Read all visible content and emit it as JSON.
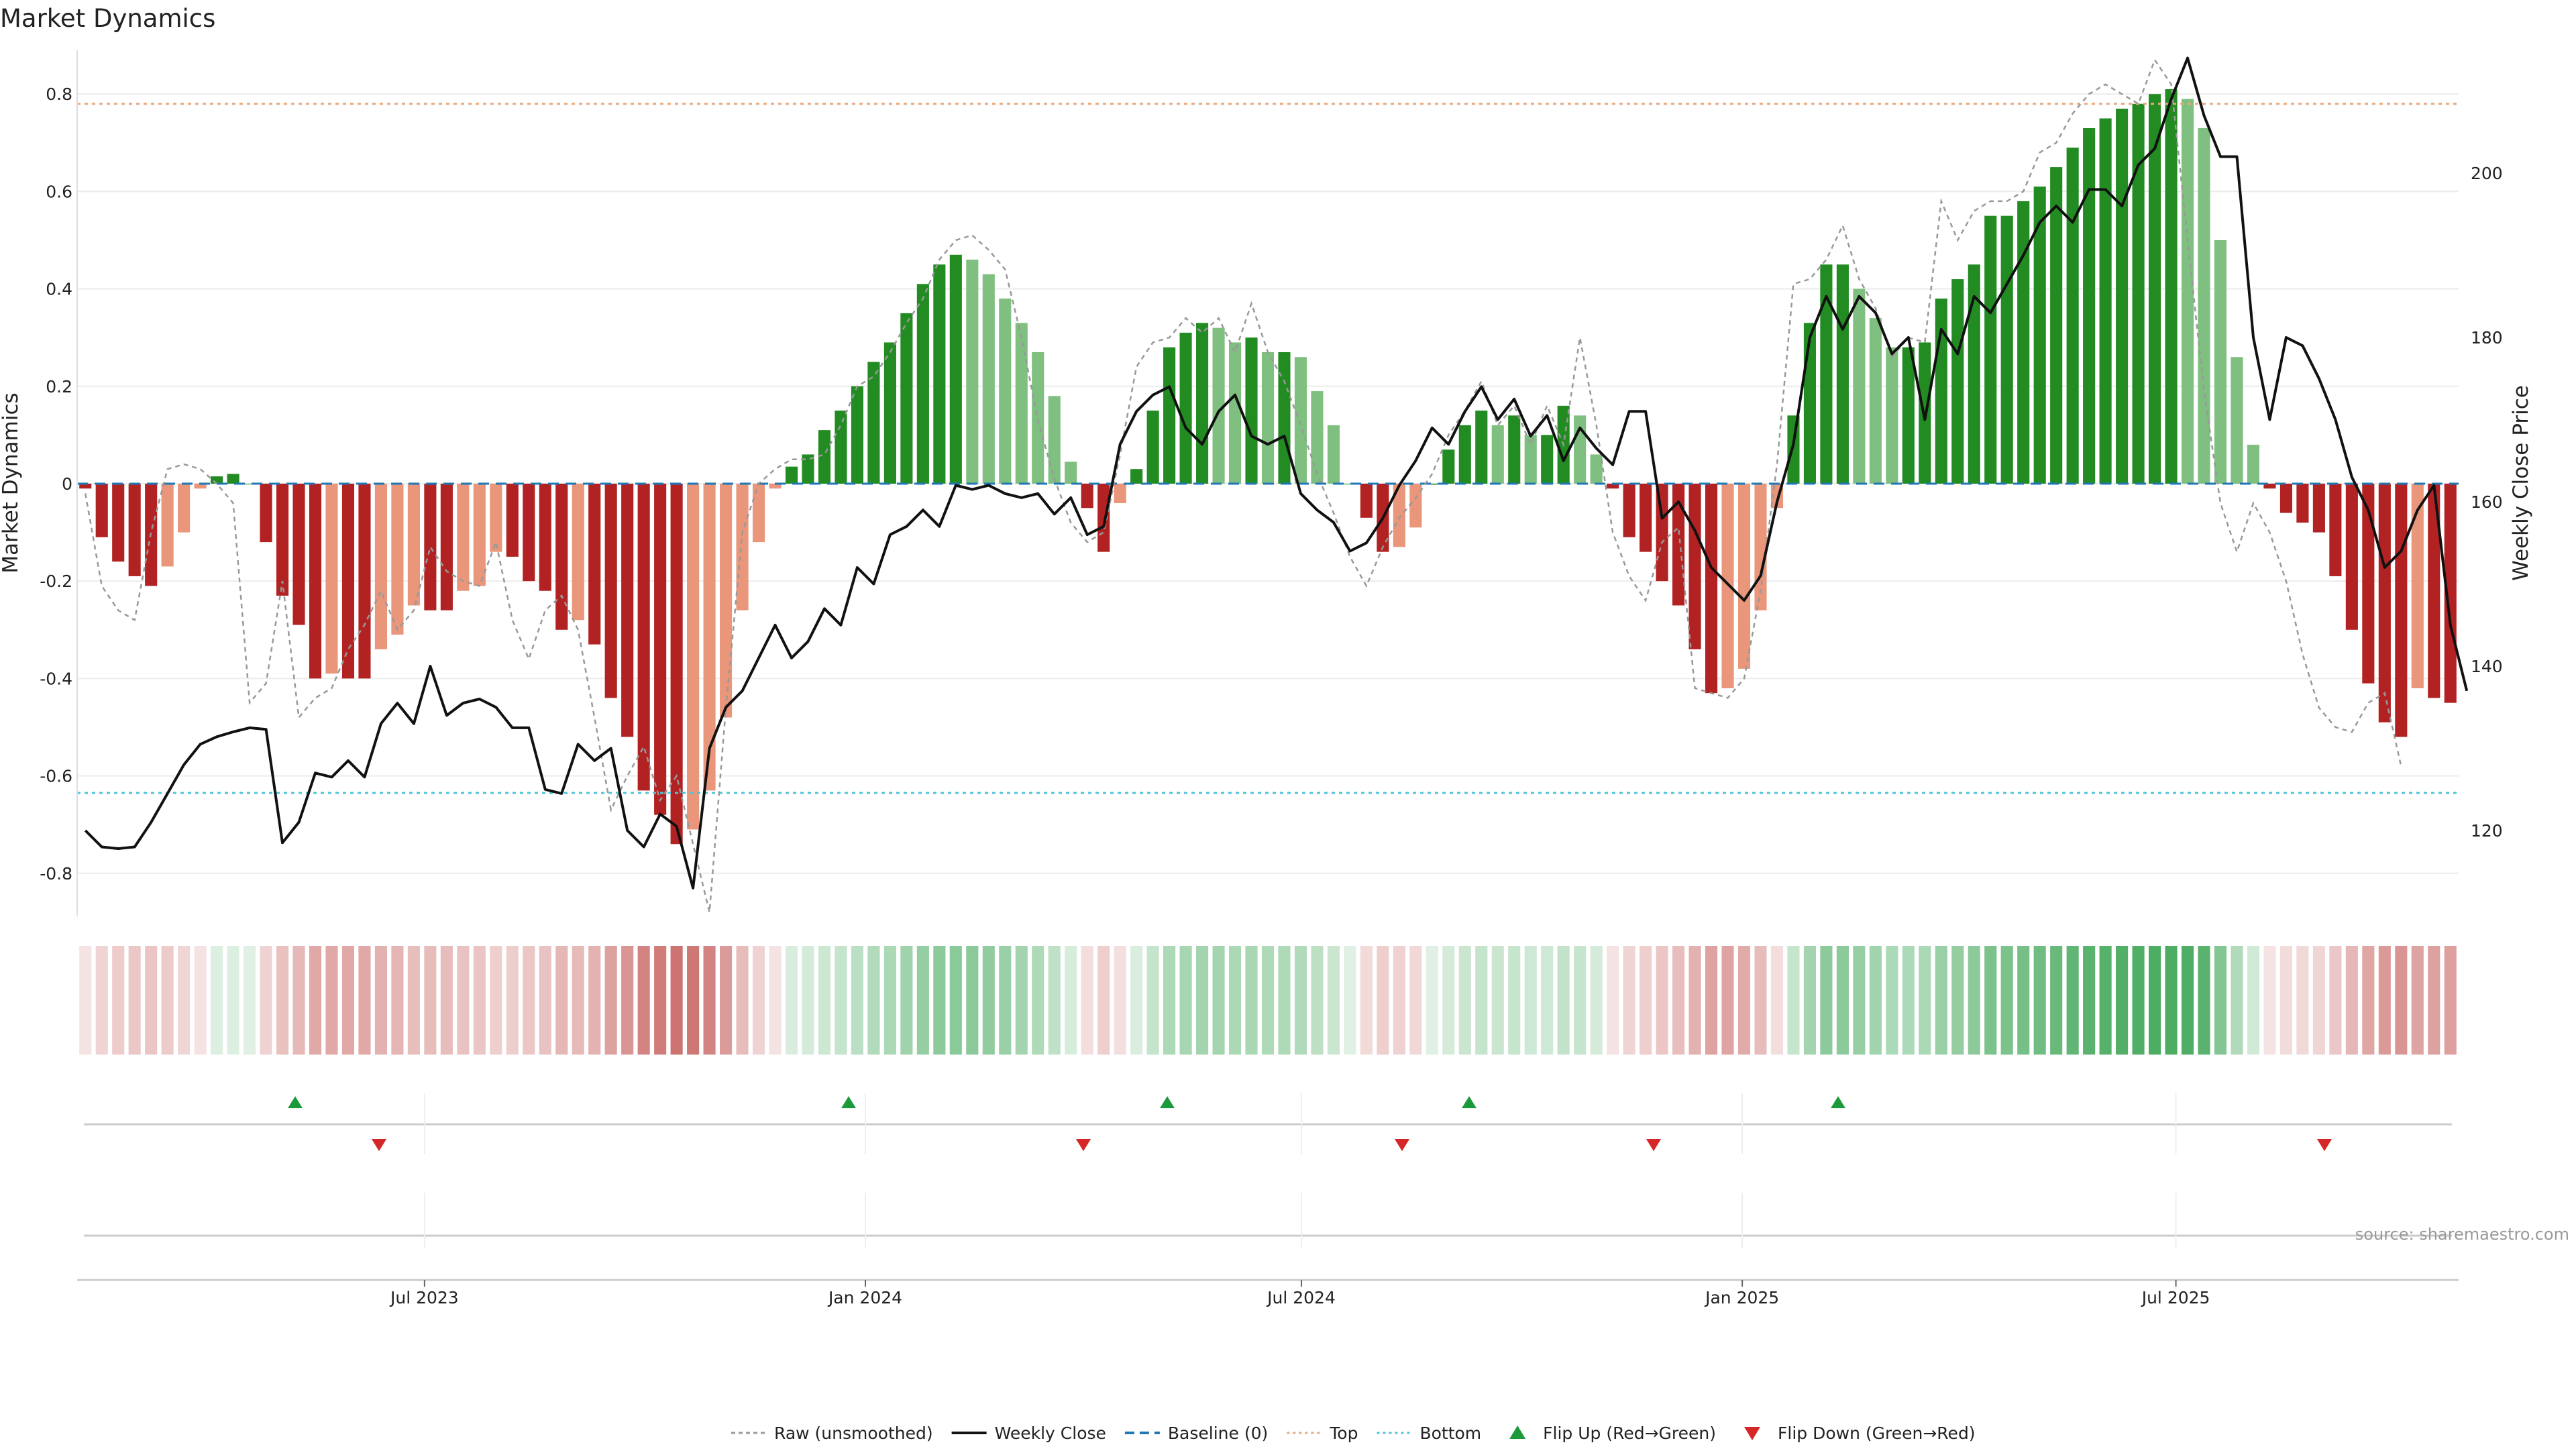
{
  "chart_data": {
    "type": "bar",
    "title": "Market Dynamics",
    "ylabel": "Market Dynamics",
    "y2label": "Weekly Close Price",
    "ylim": [
      -0.88,
      0.88
    ],
    "y2lim": [
      109,
      218
    ],
    "yticks": [
      "0.8",
      "0.6",
      "0.4",
      "0.2",
      "0",
      "-0.2",
      "-0.4",
      "-0.6",
      "-0.8"
    ],
    "y2ticks": [
      "200",
      "180",
      "160",
      "140",
      "120"
    ],
    "x_start": "2023-02-06",
    "x_end": "2025-10-27",
    "xticks": [
      {
        "date": "2023-07-01",
        "label": "Jul 2023"
      },
      {
        "date": "2024-01-01",
        "label": "Jan 2024"
      },
      {
        "date": "2024-07-01",
        "label": "Jul 2024"
      },
      {
        "date": "2025-01-01",
        "label": "Jan 2025"
      },
      {
        "date": "2025-07-01",
        "label": "Jul 2025"
      }
    ],
    "top_level": 0.78,
    "bottom_level": -0.635,
    "grid": true,
    "legend_position": "bottom-center",
    "dynamics": [
      -0.01,
      -0.11,
      -0.16,
      -0.19,
      -0.21,
      -0.17,
      -0.1,
      -0.01,
      0.015,
      0.02,
      0,
      -0.12,
      -0.23,
      -0.29,
      -0.4,
      -0.39,
      -0.4,
      -0.4,
      -0.34,
      -0.31,
      -0.25,
      -0.26,
      -0.26,
      -0.22,
      -0.21,
      -0.14,
      -0.15,
      -0.2,
      -0.22,
      -0.3,
      -0.28,
      -0.33,
      -0.44,
      -0.52,
      -0.63,
      -0.68,
      -0.74,
      -0.71,
      -0.63,
      -0.48,
      -0.26,
      -0.12,
      -0.01,
      0.035,
      0.06,
      0.11,
      0.15,
      0.2,
      0.25,
      0.29,
      0.35,
      0.41,
      0.45,
      0.47,
      0.46,
      0.43,
      0.38,
      0.33,
      0.27,
      0.18,
      0.045,
      -0.05,
      -0.14,
      -0.04,
      0.03,
      0.15,
      0.28,
      0.31,
      0.33,
      0.32,
      0.29,
      0.3,
      0.27,
      0.27,
      0.26,
      0.19,
      0.12,
      0,
      -0.07,
      -0.14,
      -0.13,
      -0.09,
      0,
      0.07,
      0.12,
      0.15,
      0.12,
      0.14,
      0.1,
      0.1,
      0.16,
      0.14,
      0.06,
      -0.01,
      -0.11,
      -0.14,
      -0.2,
      -0.25,
      -0.34,
      -0.43,
      -0.42,
      -0.38,
      -0.26,
      -0.05,
      0.14,
      0.33,
      0.45,
      0.45,
      0.4,
      0.34,
      0.28,
      0.28,
      0.29,
      0.38,
      0.42,
      0.45,
      0.55,
      0.55,
      0.58,
      0.61,
      0.65,
      0.69,
      0.73,
      0.75,
      0.77,
      0.78,
      0.8,
      0.81,
      0.79,
      0.73,
      0.5,
      0.26,
      0.08,
      -0.01,
      -0.06,
      -0.08,
      -0.1,
      -0.19,
      -0.3,
      -0.41,
      -0.49,
      -0.52,
      -0.42,
      -0.44,
      -0.45
    ],
    "raw": [
      -0.02,
      -0.21,
      -0.26,
      -0.28,
      -0.1,
      0.03,
      0.04,
      0.03,
      0,
      -0.04,
      -0.45,
      -0.41,
      -0.2,
      -0.48,
      -0.44,
      -0.42,
      -0.34,
      -0.29,
      -0.22,
      -0.3,
      -0.26,
      -0.13,
      -0.18,
      -0.2,
      -0.21,
      -0.12,
      -0.28,
      -0.36,
      -0.26,
      -0.23,
      -0.3,
      -0.48,
      -0.67,
      -0.6,
      -0.54,
      -0.65,
      -0.6,
      -0.74,
      -0.88,
      -0.46,
      -0.1,
      0,
      0.03,
      0.05,
      0.05,
      0.06,
      0.12,
      0.2,
      0.22,
      0.27,
      0.33,
      0.38,
      0.46,
      0.5,
      0.51,
      0.48,
      0.44,
      0.3,
      0.13,
      0.01,
      -0.08,
      -0.12,
      -0.1,
      0.06,
      0.24,
      0.29,
      0.3,
      0.34,
      0.31,
      0.34,
      0.27,
      0.37,
      0.27,
      0.21,
      0.12,
      0.02,
      -0.06,
      -0.15,
      -0.21,
      -0.13,
      -0.07,
      -0.03,
      0.02,
      0.1,
      0.15,
      0.21,
      0.12,
      0.16,
      0.08,
      0.16,
      0.08,
      0.3,
      0.12,
      -0.1,
      -0.19,
      -0.24,
      -0.12,
      -0.09,
      -0.42,
      -0.43,
      -0.44,
      -0.4,
      -0.22,
      0.04,
      0.41,
      0.42,
      0.46,
      0.53,
      0.42,
      0.36,
      0.26,
      0.3,
      0.29,
      0.58,
      0.5,
      0.56,
      0.58,
      0.58,
      0.6,
      0.68,
      0.7,
      0.76,
      0.8,
      0.82,
      0.8,
      0.78,
      0.87,
      0.82,
      0.5,
      0.19,
      -0.04,
      -0.14,
      -0.04,
      -0.1,
      -0.2,
      -0.35,
      -0.46,
      -0.5,
      -0.51,
      -0.45,
      -0.43,
      -0.58
    ],
    "close": [
      120,
      118,
      117.8,
      118,
      121,
      124.5,
      128,
      130.5,
      131.4,
      132,
      132.5,
      132.3,
      118.5,
      121,
      127,
      126.5,
      128.5,
      126.5,
      133,
      135.5,
      133,
      140,
      134,
      135.5,
      136,
      135,
      132.5,
      132.5,
      125,
      124.5,
      130.5,
      128.5,
      130,
      120,
      118,
      122,
      120.5,
      113,
      130,
      135,
      137,
      141,
      145,
      141,
      143,
      147,
      145,
      152,
      150,
      156,
      157,
      159,
      157,
      162,
      161.5,
      162,
      161,
      160.5,
      161,
      158.5,
      160.5,
      156,
      157,
      167,
      171,
      173,
      174,
      169,
      167,
      171,
      173,
      168,
      167,
      168,
      161,
      159,
      157.5,
      154,
      155,
      158,
      162,
      165,
      169,
      167,
      171,
      174,
      170,
      172.5,
      168,
      170.5,
      165,
      169,
      166.5,
      164.5,
      171,
      171,
      158,
      160,
      156.5,
      152,
      150,
      148,
      151,
      160,
      167,
      180,
      185,
      181,
      185,
      183,
      178,
      180,
      170,
      181,
      178,
      185,
      183,
      186.5,
      190,
      194,
      196,
      194,
      198,
      198,
      196,
      201,
      203,
      209,
      214,
      207,
      202,
      202,
      180,
      170,
      180,
      179,
      175,
      170,
      163,
      159,
      152,
      154,
      159,
      162,
      145,
      137
    ],
    "flip_up": [
      "2023-05-08",
      "2023-12-25",
      "2024-05-06",
      "2024-09-09",
      "2025-02-10"
    ],
    "flip_down": [
      "2023-06-12",
      "2024-04-01",
      "2024-08-12",
      "2024-11-25",
      "2025-09-01"
    ],
    "legend": [
      {
        "label": "Raw (unsmoothed)",
        "symbol": "dashed-gray-line"
      },
      {
        "label": "Weekly Close",
        "symbol": "solid-black-line"
      },
      {
        "label": "Baseline (0)",
        "symbol": "dashed-blue-line"
      },
      {
        "label": "Top",
        "symbol": "dotted-orange-line"
      },
      {
        "label": "Bottom",
        "symbol": "dotted-cyan-line"
      },
      {
        "label": "Flip Up (Red→Green)",
        "symbol": "green-up-triangle"
      },
      {
        "label": "Flip Down (Green→Red)",
        "symbol": "red-down-triangle"
      }
    ],
    "source": "source: sharemaestro.com",
    "colors": {
      "green_strong": "#228b22",
      "green_light": "#7fbf7f",
      "red_strong": "#b22222",
      "red_light": "#e9967a",
      "raw": "#999999",
      "close": "#111111",
      "baseline": "#1f77b4",
      "top": "#e8a87c",
      "bottom": "#4fc3d9",
      "flip_up": "#1a9a3a",
      "flip_down": "#d62728"
    }
  }
}
